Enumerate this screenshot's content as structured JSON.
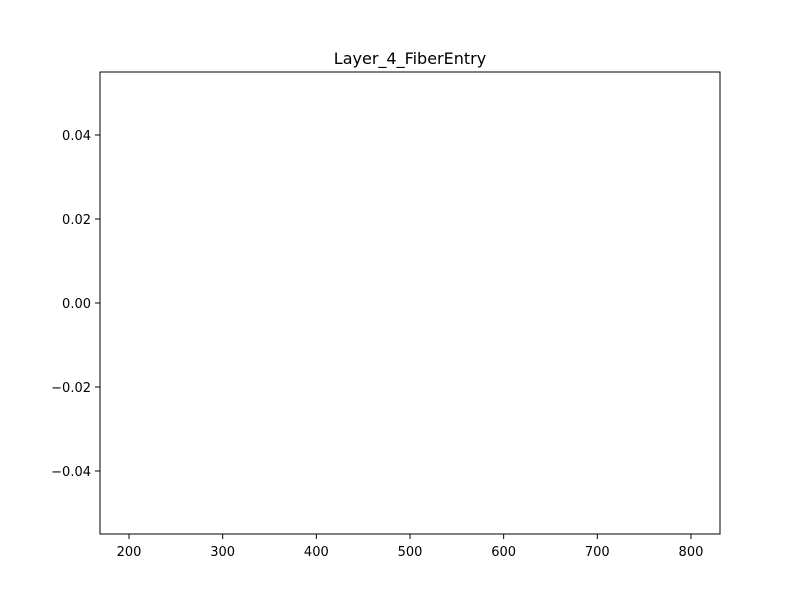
{
  "chart_data": {
    "type": "scatter",
    "title": "Layer_4_FiberEntry",
    "xlabel": "",
    "ylabel": "",
    "xlim": [
      169,
      831
    ],
    "ylim": [
      -0.055,
      0.055
    ],
    "x_ticks": [
      200,
      300,
      400,
      500,
      600,
      700,
      800
    ],
    "x_tick_labels": [
      "200",
      "300",
      "400",
      "500",
      "600",
      "700",
      "800"
    ],
    "y_ticks": [
      -0.04,
      -0.02,
      0.0,
      0.02,
      0.04
    ],
    "y_tick_labels": [
      "−0.04",
      "−0.02",
      "0.00",
      "0.02",
      "0.04"
    ],
    "grid": false,
    "series": [
      {
        "x": [],
        "y": []
      }
    ]
  }
}
